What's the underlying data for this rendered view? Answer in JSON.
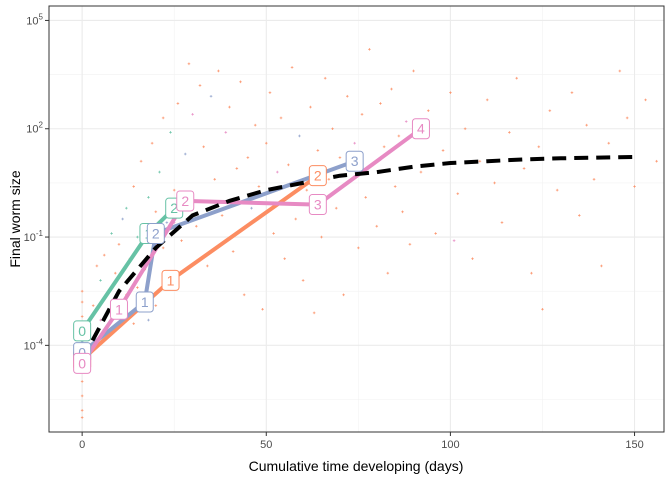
{
  "chart_data": {
    "type": "line",
    "xlabel": "Cumulative time developing (days)",
    "ylabel": "Final worm size",
    "xlim": [
      -9,
      158
    ],
    "ylim_log10": [
      -6.4,
      5.4
    ],
    "y_scale": "log10",
    "grid": true,
    "legend": "none",
    "x_ticks": [
      {
        "value": 0,
        "label": "0"
      },
      {
        "value": 50,
        "label": "50"
      },
      {
        "value": 100,
        "label": "100"
      },
      {
        "value": 150,
        "label": "150"
      }
    ],
    "y_ticks": [
      {
        "log10": -4,
        "base": "10",
        "exp": "-4"
      },
      {
        "log10": -1,
        "base": "10",
        "exp": "-1"
      },
      {
        "log10": 2,
        "base": "10",
        "exp": "2"
      },
      {
        "log10": 5,
        "base": "10",
        "exp": "5"
      }
    ],
    "colors": {
      "teal": "#66c2a5",
      "orange": "#fc8d62",
      "blue": "#8da0cb",
      "pink": "#e78ac3",
      "trend": "#000000"
    },
    "series": [
      {
        "color": "#66c2a5",
        "x": [
          0,
          18,
          25
        ],
        "y_log10": [
          -3.6,
          -0.9,
          -0.2
        ],
        "labels": [
          "0",
          "1",
          "2"
        ]
      },
      {
        "color": "#fc8d62",
        "x": [
          0,
          24,
          64
        ],
        "y_log10": [
          -4.4,
          -2.2,
          0.7
        ],
        "labels": [
          "0",
          "1",
          "2"
        ]
      },
      {
        "color": "#8da0cb",
        "x": [
          0,
          17,
          20,
          74
        ],
        "y_log10": [
          -4.2,
          -2.8,
          -0.9,
          1.1
        ],
        "labels": [
          "0",
          "1",
          "2",
          "3"
        ]
      },
      {
        "color": "#e78ac3",
        "x": [
          0,
          10,
          28,
          64,
          92
        ],
        "y_log10": [
          -4.5,
          -3.0,
          0.0,
          -0.1,
          2.0
        ],
        "labels": [
          "0",
          "1",
          "2",
          "3",
          "4"
        ]
      }
    ],
    "trend_line": {
      "x": [
        0,
        10,
        20,
        30,
        40,
        50,
        60,
        70,
        80,
        90,
        100,
        110,
        120,
        130,
        140,
        150
      ],
      "y_log10": [
        -4.4,
        -2.5,
        -1.3,
        -0.4,
        0.0,
        0.3,
        0.5,
        0.7,
        0.8,
        0.95,
        1.05,
        1.1,
        1.15,
        1.18,
        1.2,
        1.22
      ]
    },
    "points": [
      {
        "x": 0,
        "y_log10": -5.8,
        "c": "orange"
      },
      {
        "x": 0,
        "y_log10": -5.4,
        "c": "orange"
      },
      {
        "x": 0,
        "y_log10": -5.0,
        "c": "orange"
      },
      {
        "x": 0,
        "y_log10": -4.7,
        "c": "pink"
      },
      {
        "x": 0,
        "y_log10": -4.3,
        "c": "orange"
      },
      {
        "x": 0,
        "y_log10": -4.0,
        "c": "teal"
      },
      {
        "x": 0,
        "y_log10": -3.6,
        "c": "orange"
      },
      {
        "x": 0,
        "y_log10": -3.2,
        "c": "orange"
      },
      {
        "x": 0,
        "y_log10": -2.8,
        "c": "orange"
      },
      {
        "x": 0,
        "y_log10": -2.5,
        "c": "orange"
      },
      {
        "x": 0,
        "y_log10": -6.0,
        "c": "orange"
      },
      {
        "x": 0,
        "y_log10": -3.9,
        "c": "blue"
      },
      {
        "x": 3,
        "y_log10": -2.9,
        "c": "orange"
      },
      {
        "x": 4,
        "y_log10": -1.8,
        "c": "orange"
      },
      {
        "x": 5,
        "y_log10": -2.2,
        "c": "teal"
      },
      {
        "x": 6,
        "y_log10": -1.5,
        "c": "orange"
      },
      {
        "x": 7,
        "y_log10": -3.1,
        "c": "blue"
      },
      {
        "x": 8,
        "y_log10": -0.9,
        "c": "teal"
      },
      {
        "x": 9,
        "y_log10": -2.0,
        "c": "orange"
      },
      {
        "x": 10,
        "y_log10": -1.2,
        "c": "orange"
      },
      {
        "x": 11,
        "y_log10": -0.5,
        "c": "blue"
      },
      {
        "x": 12,
        "y_log10": -2.6,
        "c": "orange"
      },
      {
        "x": 12,
        "y_log10": -0.2,
        "c": "teal"
      },
      {
        "x": 13,
        "y_log10": -1.6,
        "c": "orange"
      },
      {
        "x": 14,
        "y_log10": 0.4,
        "c": "orange"
      },
      {
        "x": 14,
        "y_log10": -3.4,
        "c": "orange"
      },
      {
        "x": 15,
        "y_log10": -1.0,
        "c": "teal"
      },
      {
        "x": 15,
        "y_log10": -2.4,
        "c": "orange"
      },
      {
        "x": 16,
        "y_log10": 1.1,
        "c": "orange"
      },
      {
        "x": 16,
        "y_log10": -0.8,
        "c": "blue"
      },
      {
        "x": 17,
        "y_log10": -1.9,
        "c": "orange"
      },
      {
        "x": 18,
        "y_log10": 0.1,
        "c": "teal"
      },
      {
        "x": 18,
        "y_log10": -3.3,
        "c": "blue"
      },
      {
        "x": 19,
        "y_log10": 1.6,
        "c": "orange"
      },
      {
        "x": 20,
        "y_log10": -0.3,
        "c": "orange"
      },
      {
        "x": 20,
        "y_log10": -2.9,
        "c": "orange"
      },
      {
        "x": 21,
        "y_log10": 0.8,
        "c": "teal"
      },
      {
        "x": 22,
        "y_log10": -1.3,
        "c": "orange"
      },
      {
        "x": 22,
        "y_log10": 2.3,
        "c": "orange"
      },
      {
        "x": 23,
        "y_log10": -0.6,
        "c": "blue"
      },
      {
        "x": 24,
        "y_log10": 1.9,
        "c": "teal"
      },
      {
        "x": 25,
        "y_log10": 0.3,
        "c": "orange"
      },
      {
        "x": 25,
        "y_log10": -2.2,
        "c": "orange"
      },
      {
        "x": 26,
        "y_log10": 2.7,
        "c": "orange"
      },
      {
        "x": 27,
        "y_log10": -1.1,
        "c": "orange"
      },
      {
        "x": 28,
        "y_log10": 1.3,
        "c": "blue"
      },
      {
        "x": 29,
        "y_log10": 3.8,
        "c": "orange"
      },
      {
        "x": 30,
        "y_log10": 0.0,
        "c": "orange"
      },
      {
        "x": 30,
        "y_log10": 2.4,
        "c": "pink"
      },
      {
        "x": 31,
        "y_log10": -0.7,
        "c": "orange"
      },
      {
        "x": 32,
        "y_log10": 3.2,
        "c": "orange"
      },
      {
        "x": 33,
        "y_log10": 1.5,
        "c": "orange"
      },
      {
        "x": 34,
        "y_log10": -1.8,
        "c": "orange"
      },
      {
        "x": 35,
        "y_log10": 2.9,
        "c": "blue"
      },
      {
        "x": 36,
        "y_log10": 0.6,
        "c": "orange"
      },
      {
        "x": 37,
        "y_log10": 3.6,
        "c": "orange"
      },
      {
        "x": 38,
        "y_log10": -0.4,
        "c": "orange"
      },
      {
        "x": 39,
        "y_log10": 1.9,
        "c": "pink"
      },
      {
        "x": 40,
        "y_log10": 2.6,
        "c": "orange"
      },
      {
        "x": 41,
        "y_log10": -1.4,
        "c": "orange"
      },
      {
        "x": 42,
        "y_log10": 0.9,
        "c": "orange"
      },
      {
        "x": 43,
        "y_log10": 3.3,
        "c": "orange"
      },
      {
        "x": 44,
        "y_log10": -2.6,
        "c": "orange"
      },
      {
        "x": 45,
        "y_log10": 1.2,
        "c": "orange"
      },
      {
        "x": 46,
        "y_log10": -0.2,
        "c": "blue"
      },
      {
        "x": 47,
        "y_log10": 2.1,
        "c": "orange"
      },
      {
        "x": 48,
        "y_log10": 0.4,
        "c": "orange"
      },
      {
        "x": 49,
        "y_log10": -3.0,
        "c": "orange"
      },
      {
        "x": 50,
        "y_log10": 1.6,
        "c": "orange"
      },
      {
        "x": 51,
        "y_log10": 3.0,
        "c": "orange"
      },
      {
        "x": 52,
        "y_log10": -0.9,
        "c": "orange"
      },
      {
        "x": 53,
        "y_log10": 0.8,
        "c": "pink"
      },
      {
        "x": 54,
        "y_log10": 2.3,
        "c": "orange"
      },
      {
        "x": 55,
        "y_log10": -1.6,
        "c": "orange"
      },
      {
        "x": 56,
        "y_log10": 1.0,
        "c": "orange"
      },
      {
        "x": 57,
        "y_log10": 3.7,
        "c": "orange"
      },
      {
        "x": 58,
        "y_log10": -0.5,
        "c": "orange"
      },
      {
        "x": 59,
        "y_log10": 1.8,
        "c": "blue"
      },
      {
        "x": 60,
        "y_log10": -2.2,
        "c": "orange"
      },
      {
        "x": 61,
        "y_log10": 0.3,
        "c": "orange"
      },
      {
        "x": 62,
        "y_log10": 2.6,
        "c": "orange"
      },
      {
        "x": 63,
        "y_log10": -3.1,
        "c": "orange"
      },
      {
        "x": 64,
        "y_log10": 1.4,
        "c": "orange"
      },
      {
        "x": 65,
        "y_log10": -1.0,
        "c": "orange"
      },
      {
        "x": 66,
        "y_log10": 3.4,
        "c": "orange"
      },
      {
        "x": 67,
        "y_log10": 0.6,
        "c": "orange"
      },
      {
        "x": 68,
        "y_log10": 2.0,
        "c": "orange"
      },
      {
        "x": 69,
        "y_log10": -0.2,
        "c": "orange"
      },
      {
        "x": 70,
        "y_log10": 1.2,
        "c": "orange"
      },
      {
        "x": 71,
        "y_log10": -2.6,
        "c": "orange"
      },
      {
        "x": 72,
        "y_log10": 2.9,
        "c": "orange"
      },
      {
        "x": 73,
        "y_log10": 0.9,
        "c": "orange"
      },
      {
        "x": 74,
        "y_log10": 1.6,
        "c": "pink"
      },
      {
        "x": 75,
        "y_log10": -1.3,
        "c": "orange"
      },
      {
        "x": 76,
        "y_log10": 2.4,
        "c": "orange"
      },
      {
        "x": 77,
        "y_log10": 0.1,
        "c": "orange"
      },
      {
        "x": 78,
        "y_log10": 4.2,
        "c": "orange"
      },
      {
        "x": 79,
        "y_log10": 1.0,
        "c": "orange"
      },
      {
        "x": 80,
        "y_log10": -0.7,
        "c": "orange"
      },
      {
        "x": 81,
        "y_log10": 2.7,
        "c": "orange"
      },
      {
        "x": 82,
        "y_log10": 1.5,
        "c": "orange"
      },
      {
        "x": 83,
        "y_log10": -2.0,
        "c": "orange"
      },
      {
        "x": 84,
        "y_log10": 3.1,
        "c": "orange"
      },
      {
        "x": 85,
        "y_log10": 0.4,
        "c": "orange"
      },
      {
        "x": 86,
        "y_log10": 1.8,
        "c": "orange"
      },
      {
        "x": 87,
        "y_log10": -0.3,
        "c": "orange"
      },
      {
        "x": 88,
        "y_log10": 2.2,
        "c": "pink"
      },
      {
        "x": 89,
        "y_log10": -1.2,
        "c": "orange"
      },
      {
        "x": 90,
        "y_log10": 3.6,
        "c": "orange"
      },
      {
        "x": 92,
        "y_log10": 0.8,
        "c": "orange"
      },
      {
        "x": 94,
        "y_log10": 2.5,
        "c": "orange"
      },
      {
        "x": 96,
        "y_log10": -0.9,
        "c": "orange"
      },
      {
        "x": 98,
        "y_log10": 1.4,
        "c": "orange"
      },
      {
        "x": 100,
        "y_log10": 3.0,
        "c": "orange"
      },
      {
        "x": 102,
        "y_log10": 0.2,
        "c": "orange"
      },
      {
        "x": 104,
        "y_log10": 2.0,
        "c": "orange"
      },
      {
        "x": 106,
        "y_log10": -1.6,
        "c": "orange"
      },
      {
        "x": 108,
        "y_log10": 1.1,
        "c": "orange"
      },
      {
        "x": 110,
        "y_log10": 2.8,
        "c": "orange"
      },
      {
        "x": 112,
        "y_log10": 0.5,
        "c": "orange"
      },
      {
        "x": 114,
        "y_log10": -0.6,
        "c": "orange"
      },
      {
        "x": 116,
        "y_log10": 1.9,
        "c": "orange"
      },
      {
        "x": 118,
        "y_log10": 3.4,
        "c": "orange"
      },
      {
        "x": 120,
        "y_log10": 0.9,
        "c": "orange"
      },
      {
        "x": 122,
        "y_log10": -2.0,
        "c": "orange"
      },
      {
        "x": 124,
        "y_log10": 1.5,
        "c": "orange"
      },
      {
        "x": 125,
        "y_log10": -3.0,
        "c": "orange"
      },
      {
        "x": 127,
        "y_log10": 2.5,
        "c": "orange"
      },
      {
        "x": 129,
        "y_log10": 0.3,
        "c": "orange"
      },
      {
        "x": 131,
        "y_log10": 1.2,
        "c": "orange"
      },
      {
        "x": 133,
        "y_log10": 3.0,
        "c": "orange"
      },
      {
        "x": 135,
        "y_log10": -0.4,
        "c": "orange"
      },
      {
        "x": 137,
        "y_log10": 2.1,
        "c": "orange"
      },
      {
        "x": 139,
        "y_log10": 0.6,
        "c": "orange"
      },
      {
        "x": 141,
        "y_log10": -1.8,
        "c": "orange"
      },
      {
        "x": 143,
        "y_log10": 1.6,
        "c": "orange"
      },
      {
        "x": 146,
        "y_log10": 3.6,
        "c": "orange"
      },
      {
        "x": 148,
        "y_log10": 2.3,
        "c": "orange"
      },
      {
        "x": 150,
        "y_log10": 0.4,
        "c": "orange"
      },
      {
        "x": 153,
        "y_log10": 2.8,
        "c": "orange"
      },
      {
        "x": 156,
        "y_log10": 1.1,
        "c": "orange"
      },
      {
        "x": 101,
        "y_log10": -1.1,
        "c": "pink"
      },
      {
        "x": 5,
        "y_log10": -3.3,
        "c": "pink"
      },
      {
        "x": 25,
        "y_log10": -0.6,
        "c": "pink"
      }
    ]
  }
}
